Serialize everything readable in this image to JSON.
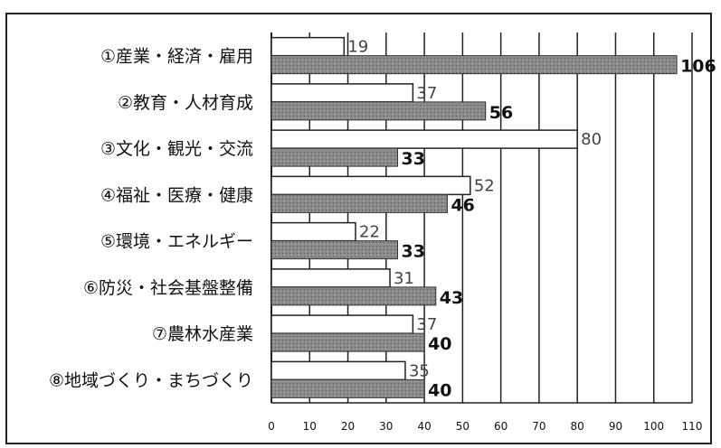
{
  "chart_data": {
    "type": "bar",
    "orientation": "horizontal",
    "categories": [
      "①産業・経済・雇用",
      "②教育・人材育成",
      "③文化・観光・交流",
      "④福祉・医療・健康",
      "⑤環境・エネルギー",
      "⑥防災・社会基盤整備",
      "⑦農林水産業",
      "⑧地域づくり・まちづくり"
    ],
    "series": [
      {
        "values": [
          19,
          37,
          80,
          52,
          22,
          31,
          37,
          35
        ],
        "color": "#ffffff"
      },
      {
        "values": [
          106,
          56,
          33,
          46,
          33,
          43,
          40,
          40
        ],
        "color": "#8a8a8a"
      }
    ],
    "x_ticks": [
      "0",
      "10",
      "20",
      "30",
      "40",
      "50",
      "60",
      "70",
      "80",
      "90",
      "100",
      "110"
    ],
    "xlim": [
      0,
      110
    ],
    "grid": "vertical",
    "legend": "none"
  }
}
